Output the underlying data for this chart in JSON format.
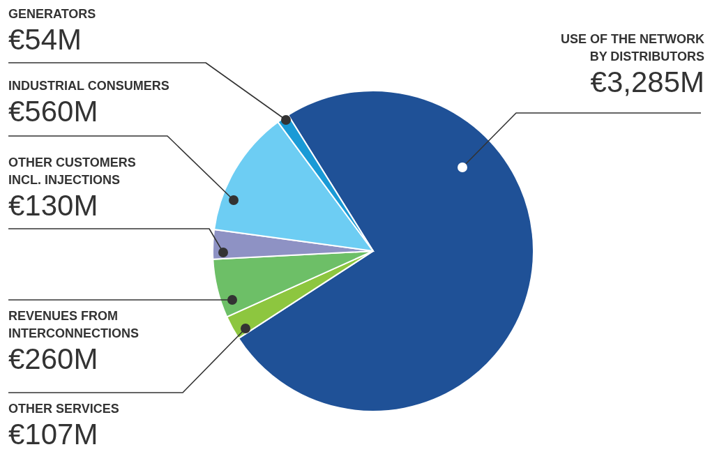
{
  "chart_data": {
    "type": "pie",
    "categories": [
      "USE OF THE NETWORK BY DISTRIBUTORS",
      "OTHER SERVICES",
      "REVENUES FROM INTERCONNECTIONS",
      "OTHER CUSTOMERS INCL. INJECTIONS",
      "INDUSTRIAL CONSUMERS",
      "GENERATORS"
    ],
    "values": [
      3285,
      107,
      260,
      130,
      560,
      54
    ],
    "value_labels": [
      "€3,285M",
      "€107M",
      "€260M",
      "€130M",
      "€560M",
      "€54M"
    ],
    "colors": [
      "#1f5197",
      "#8dc63f",
      "#6dbf67",
      "#8e92c4",
      "#6dcdf3",
      "#1a9ad6"
    ]
  }
}
